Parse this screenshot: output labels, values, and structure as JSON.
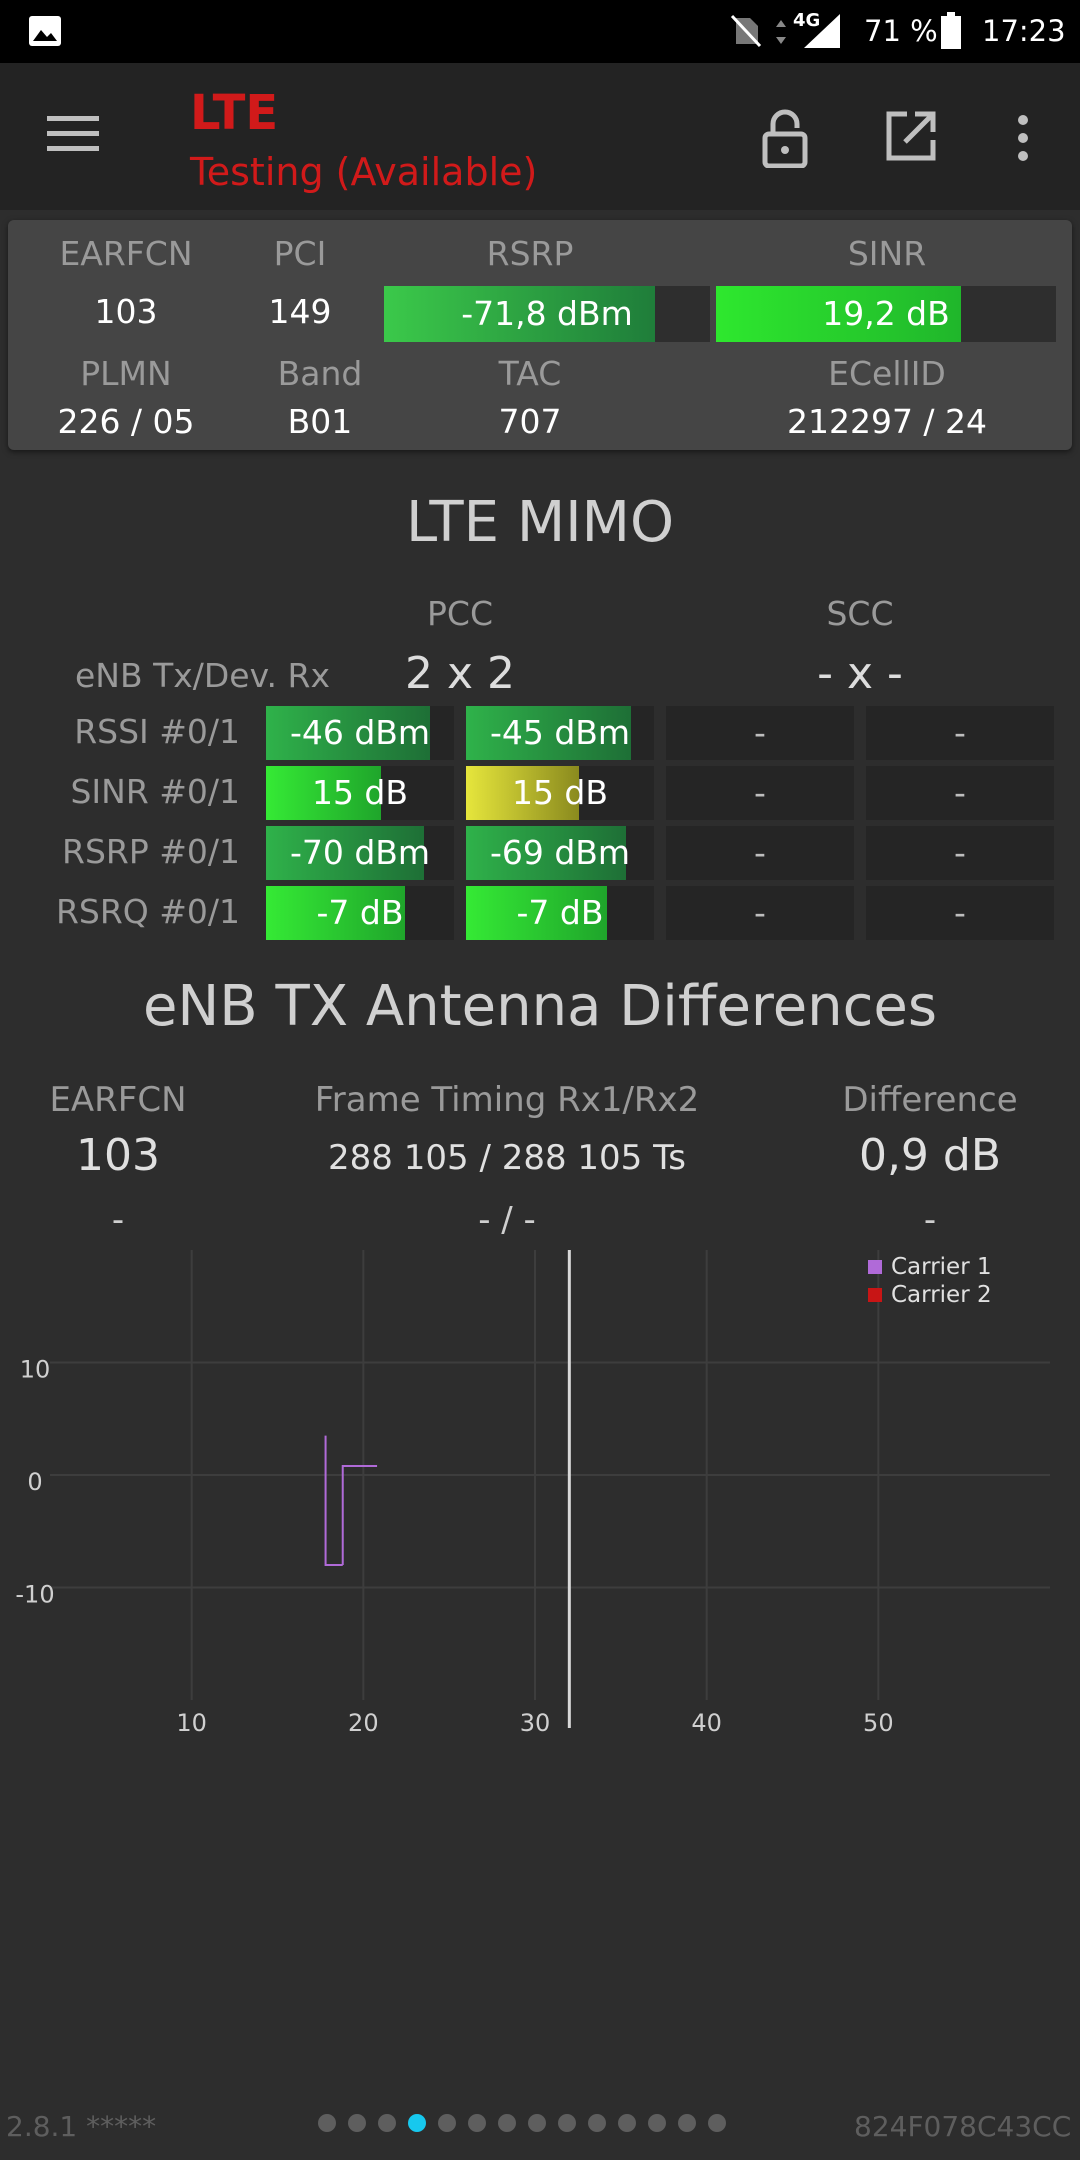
{
  "status_bar": {
    "network": "4G",
    "battery": "71 %",
    "time": "17:23"
  },
  "app_bar": {
    "title": "LTE",
    "subtitle": "Testing (Available)",
    "icons": [
      "menu-icon",
      "lock-icon",
      "open-external-icon",
      "more-vert-icon"
    ]
  },
  "serving": {
    "earfcn_label": "EARFCN",
    "earfcn": "103",
    "pci_label": "PCI",
    "pci": "149",
    "rsrp_label": "RSRP",
    "rsrp": "-71,8 dBm",
    "rsrp_fill": 0.83,
    "sinr_label": "SINR",
    "sinr": "19,2 dB",
    "sinr_fill": 0.72,
    "plmn_label": "PLMN",
    "plmn": "226 / 05",
    "band_label": "Band",
    "band": "B01",
    "tac_label": "TAC",
    "tac": "707",
    "ecellid_label": "ECellID",
    "ecellid": "212297 / 24"
  },
  "mimo": {
    "title": "LTE MIMO",
    "pcc_label": "PCC",
    "scc_label": "SCC",
    "config_label": "eNB Tx/Dev. Rx",
    "pcc_config": "2 x 2",
    "scc_config": "- x -",
    "rows": [
      {
        "label": "RSSI #0/1",
        "pcc0": "-46 dBm",
        "pcc0_fill": 0.87,
        "pcc0_color": "green",
        "pcc1": "-45 dBm",
        "pcc1_fill": 0.88,
        "pcc1_color": "green",
        "scc0": "-",
        "scc1": "-"
      },
      {
        "label": "SINR #0/1",
        "pcc0": "15 dB",
        "pcc0_fill": 0.61,
        "pcc0_color": "bright",
        "pcc1": "15 dB",
        "pcc1_fill": 0.6,
        "pcc1_color": "yellow",
        "scc0": "-",
        "scc1": "-"
      },
      {
        "label": "RSRP #0/1",
        "pcc0": "-70 dBm",
        "pcc0_fill": 0.84,
        "pcc0_color": "green",
        "pcc1": "-69 dBm",
        "pcc1_fill": 0.85,
        "pcc1_color": "green",
        "scc0": "-",
        "scc1": "-"
      },
      {
        "label": "RSRQ #0/1",
        "pcc0": "-7 dB",
        "pcc0_fill": 0.74,
        "pcc0_color": "bright",
        "pcc1": "-7 dB",
        "pcc1_fill": 0.75,
        "pcc1_color": "bright",
        "scc0": "-",
        "scc1": "-"
      }
    ]
  },
  "antenna": {
    "title": "eNB TX Antenna Differences",
    "earfcn_label": "EARFCN",
    "timing_label": "Frame Timing Rx1/Rx2",
    "diff_label": "Difference",
    "earfcn": "103",
    "timing": "288 105 / 288 105 Ts",
    "diff": "0,9 dB",
    "earfcn2": "-",
    "timing2": "- / -",
    "diff2": "-"
  },
  "chart_data": {
    "type": "line",
    "x_ticks": [
      "10",
      "20",
      "30",
      "40",
      "50"
    ],
    "y_ticks": [
      "10",
      "0",
      "-10"
    ],
    "xlim": [
      0,
      60
    ],
    "ylim": [
      -20,
      20
    ],
    "legend_position": "top-right",
    "grid": true,
    "series": [
      {
        "name": "Carrier 1",
        "color": "#b06ad8",
        "x": [
          17.8,
          17.8,
          18.8,
          18.8
        ],
        "y": [
          3.5,
          -8,
          -8,
          -8
        ]
      },
      {
        "name": "Carrier 2",
        "color": "#c81515",
        "x": [
          18.8,
          18.8,
          20.8
        ],
        "y": [
          -8,
          0.8,
          0.8
        ]
      }
    ],
    "cursor_x": 32
  },
  "footer": {
    "version": "2.8.1 *****",
    "device_id": "824F078C43CC",
    "pages": 14,
    "active_page": 4
  },
  "colors": {
    "title_red": "#d11a1a",
    "accent_cyan": "#17c8ee",
    "bar_green": "#2fbf3a",
    "bar_yellow": "#e0e034"
  }
}
